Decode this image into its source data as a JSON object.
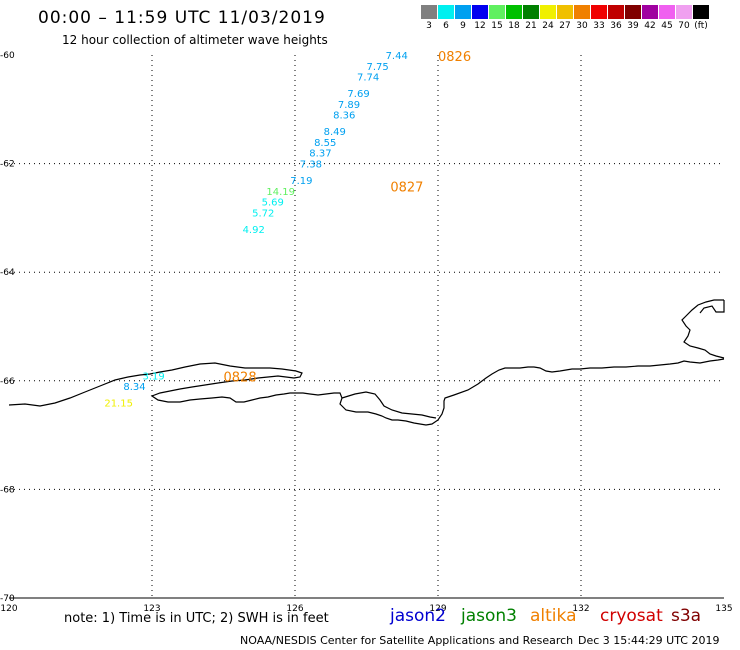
{
  "header": {
    "title": "00:00 – 11:59 UTC 11/03/2019",
    "subtitle": "12 hour collection of altimeter wave heights"
  },
  "legend": {
    "colors": [
      "#808080",
      "#00f0f0",
      "#00a0f0",
      "#0000f0",
      "#60f060",
      "#00c000",
      "#008000",
      "#f0f000",
      "#f0c000",
      "#f08000",
      "#f00000",
      "#c00000",
      "#800000",
      "#a000a0",
      "#f060f0",
      "#f0a0f0",
      "#000000"
    ],
    "labels": [
      "3",
      "6",
      "9",
      "12",
      "15",
      "18",
      "21",
      "24",
      "27",
      "30",
      "33",
      "36",
      "39",
      "42",
      "45",
      "70",
      "(ft)"
    ]
  },
  "map": {
    "x_ticks": [
      "120",
      "123",
      "126",
      "129",
      "132",
      "135"
    ],
    "x_tick_values": [
      120,
      123,
      126,
      129,
      132,
      135
    ],
    "y_ticks": [
      "-60",
      "-62",
      "-64",
      "-66",
      "-68",
      "-70"
    ],
    "y_tick_values": [
      -60,
      -62,
      -64,
      -66,
      -68,
      -70
    ],
    "time_labels": [
      {
        "text": "0826",
        "lon": 129.0,
        "lat": -60.0,
        "color": "#f08000"
      },
      {
        "text": "0827",
        "lon": 128.0,
        "lat": -62.4,
        "color": "#f08000"
      },
      {
        "text": "0828",
        "lon": 124.5,
        "lat": -65.9,
        "color": "#f08000"
      }
    ],
    "observations": [
      {
        "text": "7.44",
        "lon": 127.9,
        "lat": -60.0,
        "color": "#00a0f0"
      },
      {
        "text": "7.75",
        "lon": 127.5,
        "lat": -60.2,
        "color": "#00a0f0"
      },
      {
        "text": "7.74",
        "lon": 127.3,
        "lat": -60.4,
        "color": "#00a0f0"
      },
      {
        "text": "7.69",
        "lon": 127.1,
        "lat": -60.7,
        "color": "#00a0f0"
      },
      {
        "text": "7.89",
        "lon": 126.9,
        "lat": -60.9,
        "color": "#00a0f0"
      },
      {
        "text": "8.36",
        "lon": 126.8,
        "lat": -61.1,
        "color": "#00a0f0"
      },
      {
        "text": "8.49",
        "lon": 126.6,
        "lat": -61.4,
        "color": "#00a0f0"
      },
      {
        "text": "8.55",
        "lon": 126.4,
        "lat": -61.6,
        "color": "#00a0f0"
      },
      {
        "text": "8.37",
        "lon": 126.3,
        "lat": -61.8,
        "color": "#00a0f0"
      },
      {
        "text": "7.38",
        "lon": 126.1,
        "lat": -62.0,
        "color": "#00a0f0"
      },
      {
        "text": "7.19",
        "lon": 125.9,
        "lat": -62.3,
        "color": "#00a0f0"
      },
      {
        "text": "14.19",
        "lon": 125.4,
        "lat": -62.5,
        "color": "#60f060"
      },
      {
        "text": "5.69",
        "lon": 125.3,
        "lat": -62.7,
        "color": "#00f0f0"
      },
      {
        "text": "5.72",
        "lon": 125.1,
        "lat": -62.9,
        "color": "#00f0f0"
      },
      {
        "text": "4.92",
        "lon": 124.9,
        "lat": -63.2,
        "color": "#00f0f0"
      },
      {
        "text": "3.19",
        "lon": 122.8,
        "lat": -65.9,
        "color": "#00f0f0"
      },
      {
        "text": "8.34",
        "lon": 122.4,
        "lat": -66.1,
        "color": "#00a0f0"
      },
      {
        "text": "21.15",
        "lon": 122.0,
        "lat": -66.4,
        "color": "#f0f000"
      }
    ]
  },
  "footer": {
    "note": "note:  1) Time is in UTC;  2) SWH is in feet",
    "satellites": [
      {
        "name": "jason2",
        "color": "#0000d0"
      },
      {
        "name": "jason3",
        "color": "#008000"
      },
      {
        "name": "altika",
        "color": "#f08000"
      },
      {
        "name": "cryosat",
        "color": "#d00000"
      },
      {
        "name": "s3a",
        "color": "#800000"
      }
    ],
    "credit": "NOAA/NESDIS Center for Satellite Applications and Research",
    "timestamp": "Dec  3 15:44:29 UTC 2019"
  }
}
